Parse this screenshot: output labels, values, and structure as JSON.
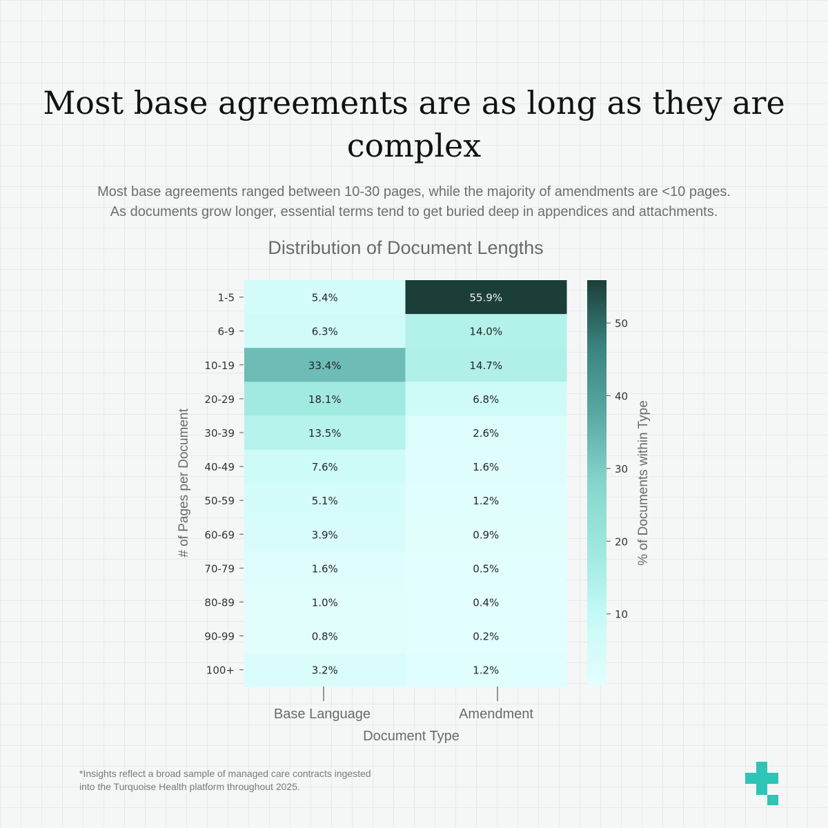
{
  "header": {
    "title": "Most base agreements are as long as they are complex",
    "subtitle_lines": [
      "Most base agreements ranged between 10-30 pages, while the majority of amendments are <10 pages.",
      "As documents grow longer, essential terms tend to get buried deep in appendices and attachments."
    ]
  },
  "chart_data": {
    "type": "heatmap",
    "title": "Distribution of Document Lengths",
    "xlabel": "Document Type",
    "ylabel": "# of Pages per Document",
    "x_categories": [
      "Base Language",
      "Amendment"
    ],
    "y_categories": [
      "1-5",
      "6-9",
      "10-19",
      "20-29",
      "30-39",
      "40-49",
      "50-59",
      "60-69",
      "70-79",
      "80-89",
      "90-99",
      "100+"
    ],
    "values": [
      [
        5.4,
        55.9
      ],
      [
        6.3,
        14.0
      ],
      [
        33.4,
        14.7
      ],
      [
        18.1,
        6.8
      ],
      [
        13.5,
        2.6
      ],
      [
        7.6,
        1.6
      ],
      [
        5.1,
        1.2
      ],
      [
        3.9,
        0.9
      ],
      [
        1.6,
        0.5
      ],
      [
        1.0,
        0.4
      ],
      [
        0.8,
        0.2
      ],
      [
        3.2,
        1.2
      ]
    ],
    "value_suffix": "%",
    "colorbar": {
      "label": "% of Documents within Type",
      "range": [
        0.2,
        55.9
      ],
      "ticks": [
        10,
        20,
        30,
        40,
        50
      ]
    },
    "colormap": [
      "#e3fefe",
      "#c6faf6",
      "#9ee9df",
      "#86d5cc",
      "#5aa9a4",
      "#3a8480",
      "#1c3e38"
    ]
  },
  "footer": {
    "note_lines": [
      "*Insights reflect a broad sample of managed care contracts ingested",
      "into the Turquoise Health platform throughout 2025."
    ]
  },
  "brand": {
    "logo_icon": "turquoise-cross-logo-icon",
    "color": "#2ec4b6"
  }
}
